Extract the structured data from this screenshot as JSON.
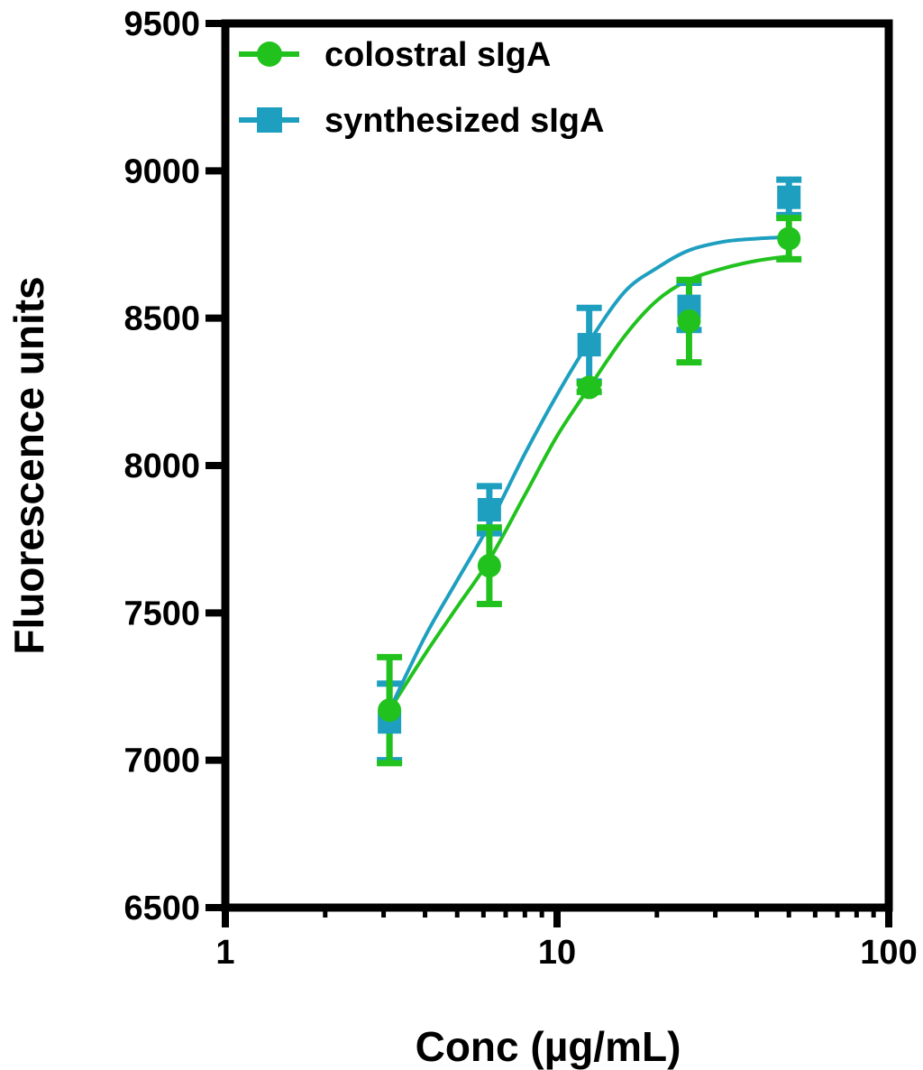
{
  "chart_data": {
    "type": "scatter",
    "title": "",
    "xlabel": "Conc (µg/mL)",
    "ylabel": "Fluorescence units",
    "xscale": "log",
    "xlim": [
      1,
      100
    ],
    "ylim": [
      6500,
      9500
    ],
    "xticks": [
      1,
      10,
      100
    ],
    "xtick_labels": [
      "1",
      "10",
      "100"
    ],
    "yticks": [
      6500,
      7000,
      7500,
      8000,
      8500,
      9000,
      9500
    ],
    "ytick_labels": [
      "6500",
      "7000",
      "7500",
      "8000",
      "8500",
      "9000",
      "9500"
    ],
    "grid": false,
    "legend_position": "top-left",
    "series": [
      {
        "name": "colostral sIgA",
        "marker": "circle",
        "color": "#22c21e",
        "points": [
          {
            "x": 3.125,
            "y": 7170,
            "err": 180
          },
          {
            "x": 6.25,
            "y": 7660,
            "err": 130
          },
          {
            "x": 12.5,
            "y": 8265,
            "err": 15
          },
          {
            "x": 25,
            "y": 8490,
            "err": 140
          },
          {
            "x": 50,
            "y": 8770,
            "err": 70
          }
        ],
        "fit_curve": {
          "x": [
            3.125,
            4,
            5,
            6.25,
            8,
            10,
            12.5,
            16,
            20,
            25,
            32,
            40,
            50
          ],
          "y": [
            7170,
            7360,
            7520,
            7680,
            7900,
            8100,
            8265,
            8440,
            8560,
            8630,
            8670,
            8695,
            8710
          ]
        }
      },
      {
        "name": "synthesized sIgA",
        "marker": "square",
        "color": "#1f9fc0",
        "points": [
          {
            "x": 3.125,
            "y": 7130,
            "err": 130
          },
          {
            "x": 6.25,
            "y": 7850,
            "err": 80
          },
          {
            "x": 12.5,
            "y": 8410,
            "err": 125
          },
          {
            "x": 25,
            "y": 8540,
            "err": 80
          },
          {
            "x": 50,
            "y": 8910,
            "err": 60
          }
        ],
        "fit_curve": {
          "x": [
            3.125,
            4,
            5,
            6.25,
            8,
            10,
            12.5,
            16,
            20,
            25,
            32,
            40,
            50
          ],
          "y": [
            7170,
            7420,
            7610,
            7800,
            8040,
            8240,
            8420,
            8590,
            8670,
            8730,
            8760,
            8770,
            8775
          ]
        }
      }
    ]
  }
}
